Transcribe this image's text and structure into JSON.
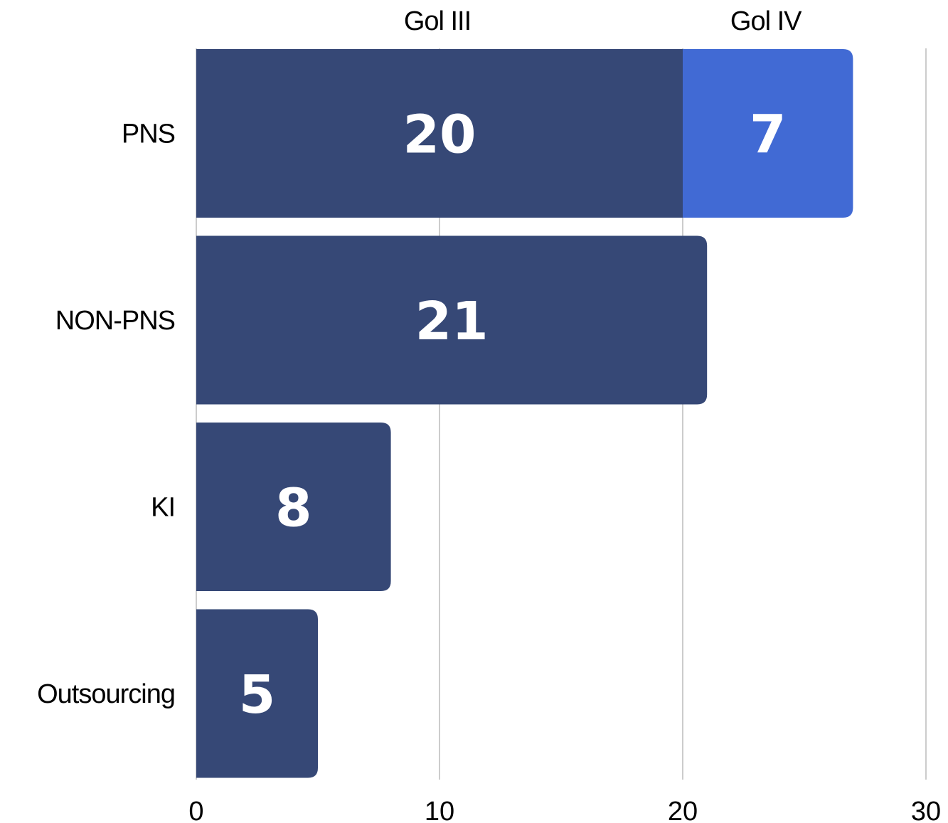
{
  "chart_data": {
    "type": "bar",
    "orientation": "horizontal",
    "stacked": true,
    "categories": [
      "PNS",
      "NON-PNS",
      "KI",
      "Outsourcing"
    ],
    "series": [
      {
        "name": "Gol III",
        "values": [
          20,
          21,
          8,
          5
        ],
        "color": "#364876"
      },
      {
        "name": "Gol IV",
        "values": [
          7,
          0,
          0,
          0
        ],
        "color": "#416AD4"
      }
    ],
    "xlim": [
      0,
      30
    ],
    "xticks": [
      0,
      10,
      20,
      30
    ],
    "tick_labels": [
      "0",
      "10",
      "20",
      "30"
    ],
    "grid": true,
    "grid_color": "#cccccc",
    "legend_placement": "top",
    "title": "",
    "xlabel": "",
    "ylabel": ""
  }
}
